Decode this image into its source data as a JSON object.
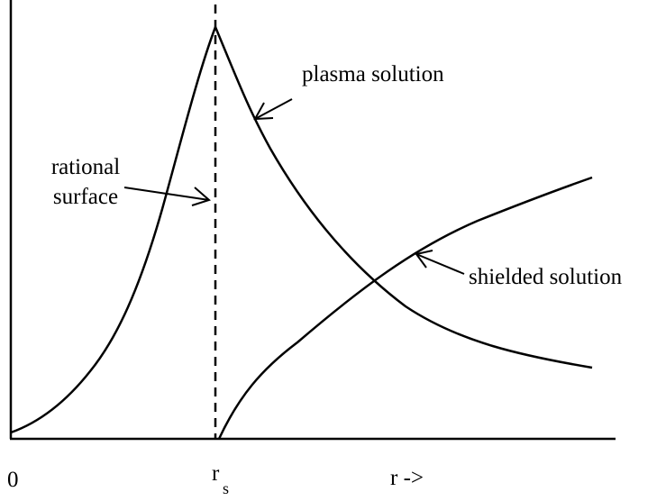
{
  "labels": {
    "plasma": "plasma solution",
    "rational": [
      "rational",
      "surface"
    ],
    "shielded": "shielded solution"
  },
  "axis": {
    "origin": "0",
    "rs": "r",
    "rs_sub": "s",
    "r": "r ->"
  }
}
